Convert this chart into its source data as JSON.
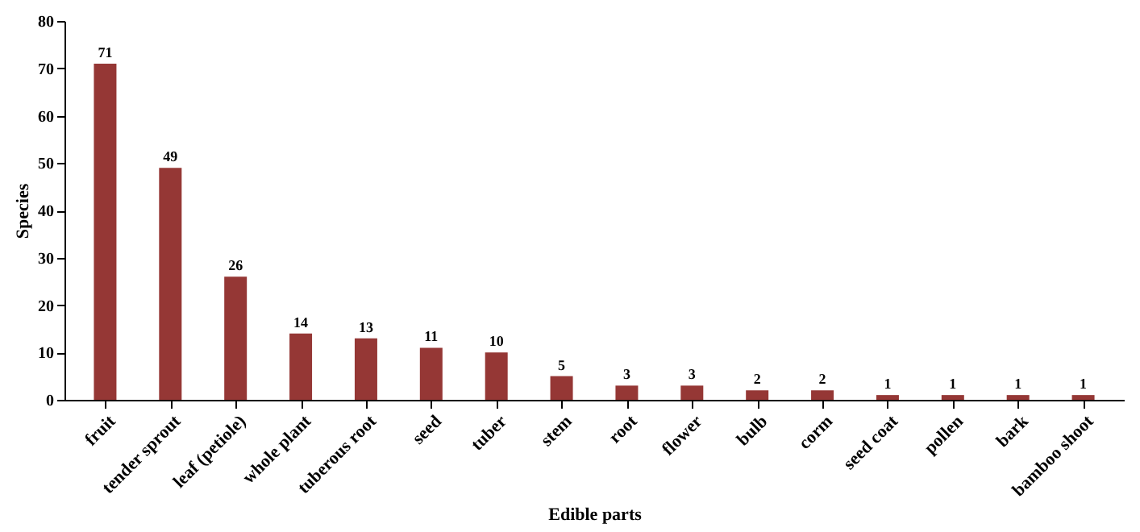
{
  "chart_data": {
    "type": "bar",
    "xlabel": "Edible parts",
    "ylabel": "Species",
    "categories": [
      "fruit",
      "tender sprout",
      "leaf (petiole)",
      "whole plant",
      "tuberous root",
      "seed",
      "tuber",
      "stem",
      "root",
      "flower",
      "bulb",
      "corm",
      "seed coat",
      "pollen",
      "bark",
      "bamboo shoot"
    ],
    "values": [
      71,
      49,
      26,
      14,
      13,
      11,
      10,
      5,
      3,
      3,
      2,
      2,
      1,
      1,
      1,
      1
    ],
    "color": "#953735",
    "ylim": [
      0,
      80
    ],
    "yticks": [
      0,
      10,
      20,
      30,
      40,
      50,
      60,
      70,
      80
    ],
    "grid": false,
    "data_labels": true
  }
}
